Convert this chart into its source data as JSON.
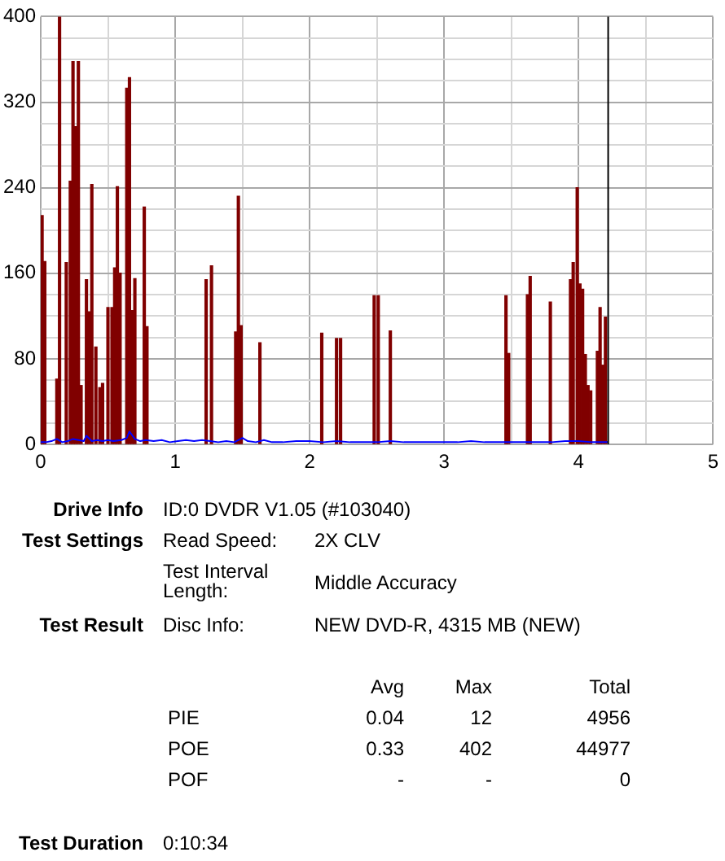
{
  "chart_data": {
    "type": "bar",
    "xlim": [
      0,
      5
    ],
    "xticks": [
      0,
      {
        "value": 0.5,
        "label": null
      },
      1,
      {
        "value": 1.5,
        "label": null
      },
      2,
      {
        "value": 2.5,
        "label": null
      },
      3,
      {
        "value": 3.5,
        "label": null
      },
      4,
      {
        "value": 4.5,
        "label": null
      },
      5
    ],
    "ylim": [
      0,
      400
    ],
    "yticks": [
      0,
      {
        "value": 20,
        "label": null
      },
      {
        "value": 40,
        "label": null
      },
      {
        "value": 60,
        "label": null
      },
      80,
      {
        "value": 100,
        "label": null
      },
      {
        "value": 120,
        "label": null
      },
      {
        "value": 140,
        "label": null
      },
      160,
      {
        "value": 180,
        "label": null
      },
      {
        "value": 200,
        "label": null
      },
      {
        "value": 220,
        "label": null
      },
      240,
      {
        "value": 260,
        "label": null
      },
      {
        "value": 280,
        "label": null
      },
      {
        "value": 300,
        "label": null
      },
      320,
      {
        "value": 340,
        "label": null
      },
      {
        "value": 360,
        "label": null
      },
      {
        "value": 380,
        "label": null
      },
      400
    ],
    "grid": true,
    "series": [
      {
        "color": "#800000",
        "x": [
          0.01,
          0.03,
          0.12,
          0.14,
          0.19,
          0.22,
          0.24,
          0.26,
          0.28,
          0.3,
          0.34,
          0.36,
          0.38,
          0.41,
          0.44,
          0.46,
          0.5,
          0.53,
          0.55,
          0.57,
          0.59,
          0.64,
          0.66,
          0.68,
          0.7,
          0.77,
          0.79,
          1.23,
          1.27,
          1.45,
          1.47,
          1.49,
          1.63,
          2.09,
          2.2,
          2.23,
          2.48,
          2.51,
          2.6,
          3.46,
          3.48,
          3.62,
          3.64,
          3.79,
          3.94,
          3.96,
          3.99,
          4.01,
          4.03,
          4.05,
          4.07,
          4.09,
          4.14,
          4.16,
          4.18,
          4.2
        ],
        "values": [
          214,
          171,
          61,
          400,
          170,
          246,
          358,
          297,
          358,
          55,
          154,
          124,
          243,
          91,
          53,
          57,
          128,
          128,
          165,
          241,
          160,
          333,
          343,
          125,
          155,
          222,
          110,
          154,
          167,
          105,
          232,
          111,
          95,
          104,
          99,
          99,
          139,
          139,
          106,
          139,
          85,
          140,
          157,
          133,
          154,
          170,
          240,
          150,
          145,
          84,
          55,
          50,
          87,
          128,
          74,
          119
        ]
      },
      {
        "type": "line",
        "color": "#0000ff",
        "x": [
          0,
          0.04,
          0.08,
          0.12,
          0.16,
          0.2,
          0.24,
          0.28,
          0.32,
          0.34,
          0.38,
          0.42,
          0.46,
          0.5,
          0.54,
          0.6,
          0.64,
          0.66,
          0.7,
          0.74,
          0.78,
          0.84,
          0.9,
          0.96,
          1.02,
          1.08,
          1.14,
          1.2,
          1.26,
          1.32,
          1.38,
          1.44,
          1.5,
          1.54,
          1.6,
          1.66,
          1.72,
          1.8,
          1.9,
          2.0,
          2.1,
          2.2,
          2.3,
          2.4,
          2.5,
          2.6,
          2.7,
          2.8,
          2.9,
          3.0,
          3.1,
          3.2,
          3.3,
          3.4,
          3.5,
          3.6,
          3.7,
          3.8,
          3.9,
          4.0,
          4.1,
          4.22
        ],
        "values": [
          2,
          2,
          3,
          5,
          2,
          3,
          5,
          4,
          3,
          8,
          3,
          4,
          3,
          4,
          3,
          4,
          6,
          12,
          5,
          3,
          4,
          3,
          4,
          2,
          3,
          4,
          3,
          4,
          3,
          2,
          3,
          2,
          6,
          3,
          2,
          4,
          2,
          2,
          3,
          3,
          2,
          3,
          2,
          2,
          2,
          3,
          2,
          2,
          2,
          2,
          2,
          3,
          2,
          2,
          2,
          2,
          2,
          2,
          3,
          3,
          2,
          2
        ]
      }
    ],
    "ref_lines": [
      {
        "axis": "x",
        "value": 4.22,
        "color": "#000000"
      }
    ],
    "annotations": [
      "Drive Info",
      "ID:0 DVDR V1.05 (#103040)",
      "Test Settings",
      "Read Speed:",
      "2X CLV",
      "Test Interval Length:",
      "Middle Accuracy",
      "Test Result",
      "Disc Info:",
      "NEW DVD-R, 4315 MB (NEW)",
      "Avg",
      "Max",
      "Total",
      "PIE",
      "0.04",
      "12",
      "4956",
      "POE",
      "0.33",
      "402",
      "44977",
      "POF",
      "-",
      "-",
      "0",
      "Test Duration",
      "0:10:34"
    ]
  }
}
